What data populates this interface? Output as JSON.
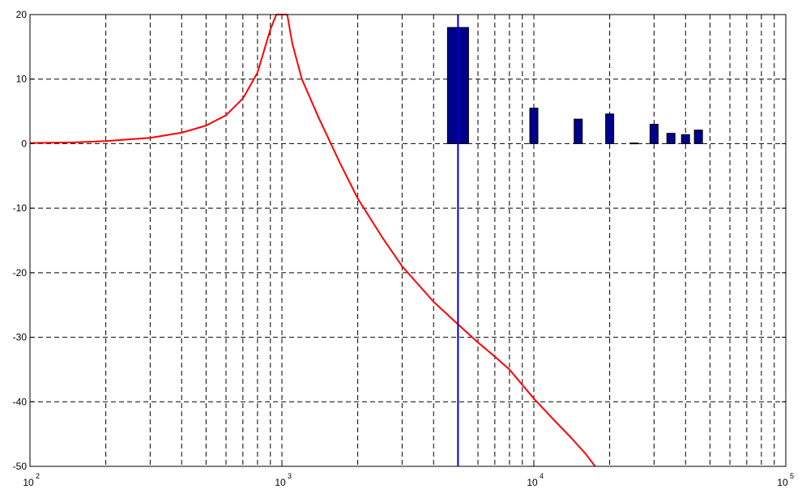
{
  "chart_data": {
    "type": "line",
    "x_scale": "log",
    "xlim": [
      100,
      100000
    ],
    "ylim": [
      -50,
      20
    ],
    "grid": true,
    "grid_style": "dashed",
    "x_ticks": [
      {
        "base": "10",
        "exp": "2"
      },
      {
        "base": "10",
        "exp": "3"
      },
      {
        "base": "10",
        "exp": "4"
      },
      {
        "base": "10",
        "exp": "5"
      }
    ],
    "y_ticks": [
      "20",
      "10",
      "0",
      "-10",
      "-20",
      "-30",
      "-40",
      "-50"
    ],
    "series": [
      {
        "color": "#ff0000",
        "kind": "line",
        "x": [
          100,
          150,
          200,
          300,
          400,
          500,
          600,
          700,
          800,
          900,
          950,
          1050,
          1100,
          1200,
          1400,
          1700,
          2000,
          2500,
          3000,
          4000,
          5000,
          6000,
          7000,
          8000,
          10000,
          12000,
          14000,
          16000,
          17500
        ],
        "y": [
          0.1,
          0.2,
          0.4,
          0.9,
          1.7,
          2.8,
          4.4,
          7.0,
          11.0,
          17.7,
          20.0,
          20.0,
          15.5,
          10.0,
          4.0,
          -3.0,
          -8.5,
          -14.5,
          -19.0,
          -24.5,
          -28.0,
          -30.8,
          -33.0,
          -35.0,
          -39.5,
          -42.8,
          -45.5,
          -48.0,
          -50.0
        ]
      },
      {
        "color": "#00008b",
        "kind": "bar",
        "x": [
          5000,
          10000,
          15000,
          20000,
          25000,
          30000,
          35000,
          40000,
          45000
        ],
        "y": [
          18,
          5.5,
          3.8,
          4.6,
          0.1,
          3.0,
          1.6,
          1.4,
          2.1
        ]
      }
    ],
    "marker_line": {
      "x": 5000,
      "color": "#0000cc"
    }
  }
}
